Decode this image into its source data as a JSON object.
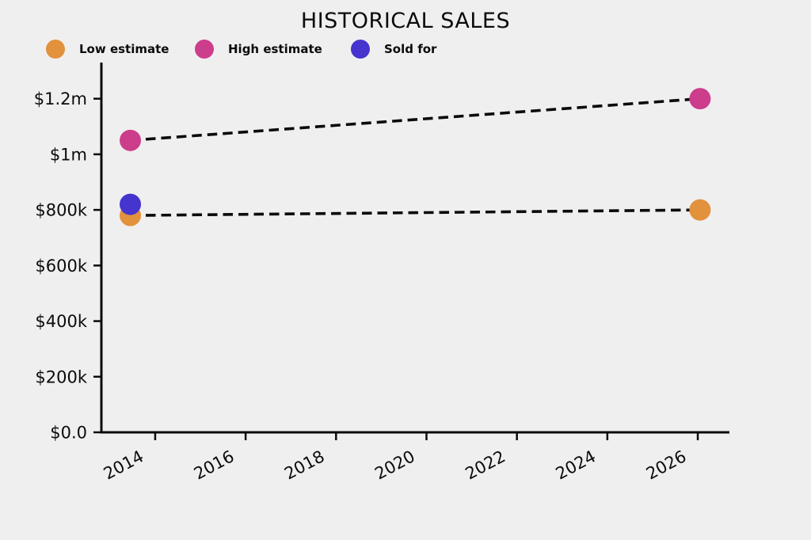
{
  "page": {
    "background_color": "#f0efef",
    "text_color": "#0b0b0b"
  },
  "chart_data": {
    "type": "scatter",
    "title": "HISTORICAL SALES",
    "xlabel": "",
    "ylabel": "",
    "grid": false,
    "legend_position": "top-left",
    "dashed_line_color": "#0b0b0b",
    "series": [
      {
        "name": "Low estimate",
        "color": "#E2913C",
        "marker": "circle",
        "line": "dashed",
        "x": [
          2013.45,
          2026.05
        ],
        "y": [
          780000,
          800000
        ]
      },
      {
        "name": "High estimate",
        "color": "#CC3D8C",
        "marker": "circle",
        "line": "dashed",
        "x": [
          2013.45,
          2026.05
        ],
        "y": [
          1050000,
          1200000
        ]
      },
      {
        "name": "Sold for",
        "color": "#4634CF",
        "marker": "circle",
        "line": "none",
        "x": [
          2013.45
        ],
        "y": [
          820000
        ]
      }
    ],
    "xlim": [
      2012.81,
      2026.7
    ],
    "ylim": [
      0,
      1330000
    ],
    "xticks": [
      {
        "value": 2014,
        "label": "2014"
      },
      {
        "value": 2016,
        "label": "2016"
      },
      {
        "value": 2018,
        "label": "2018"
      },
      {
        "value": 2020,
        "label": "2020"
      },
      {
        "value": 2022,
        "label": "2022"
      },
      {
        "value": 2024,
        "label": "2024"
      },
      {
        "value": 2026,
        "label": "2026"
      }
    ],
    "yticks": [
      {
        "value": 0,
        "label": "$0.0"
      },
      {
        "value": 200000,
        "label": "$200k"
      },
      {
        "value": 400000,
        "label": "$400k"
      },
      {
        "value": 600000,
        "label": "$600k"
      },
      {
        "value": 800000,
        "label": "$800k"
      },
      {
        "value": 1000000,
        "label": "$1m"
      },
      {
        "value": 1200000,
        "label": "$1.2m"
      }
    ]
  }
}
